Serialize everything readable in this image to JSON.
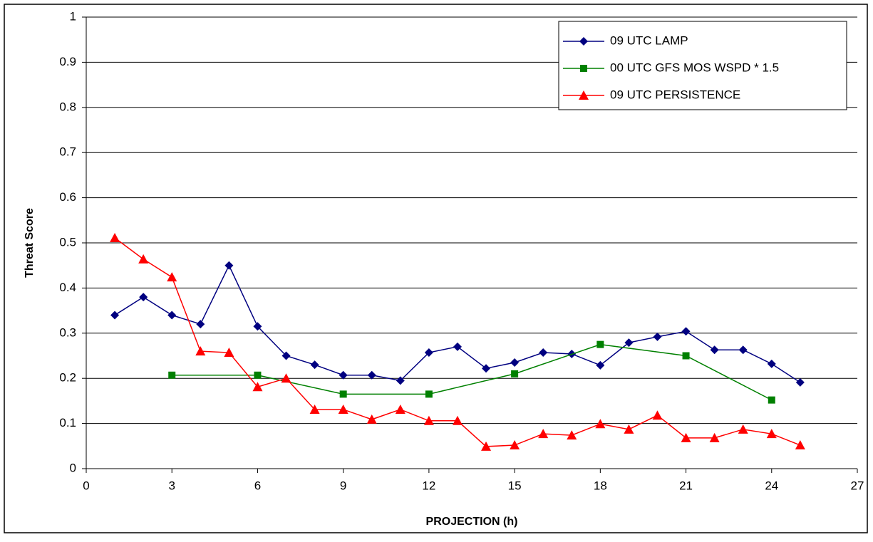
{
  "chart_data": {
    "type": "line",
    "xlabel": "PROJECTION (h)",
    "ylabel": "Threat Score",
    "xlim": [
      0,
      27
    ],
    "xticks": [
      0,
      3,
      6,
      9,
      12,
      15,
      18,
      21,
      24,
      27
    ],
    "ylim": [
      0,
      1
    ],
    "yticks": [
      0,
      0.1,
      0.2,
      0.3,
      0.4,
      0.5,
      0.6,
      0.7,
      0.8,
      0.9,
      1
    ],
    "grid": true,
    "legend": "upper right",
    "series": [
      {
        "name": "09 UTC LAMP",
        "color": "#000080",
        "marker": "diamond",
        "x": [
          1,
          2,
          3,
          4,
          5,
          6,
          7,
          8,
          9,
          10,
          11,
          12,
          13,
          14,
          15,
          16,
          17,
          18,
          19,
          20,
          21,
          22,
          23,
          24,
          25
        ],
        "values": [
          0.34,
          0.38,
          0.34,
          0.32,
          0.45,
          0.315,
          0.25,
          0.23,
          0.207,
          0.207,
          0.195,
          0.257,
          0.27,
          0.222,
          0.235,
          0.257,
          0.254,
          0.229,
          0.279,
          0.292,
          0.304,
          0.263,
          0.263,
          0.232,
          0.191
        ]
      },
      {
        "name": "00 UTC GFS MOS WSPD * 1.5",
        "color": "#008000",
        "marker": "square",
        "x": [
          3,
          6,
          9,
          12,
          15,
          18,
          21,
          24
        ],
        "values": [
          0.207,
          0.207,
          0.165,
          0.165,
          0.21,
          0.275,
          0.25,
          0.152
        ]
      },
      {
        "name": "09 UTC PERSISTENCE",
        "color": "#ff0000",
        "marker": "triangle",
        "x": [
          1,
          2,
          3,
          4,
          5,
          6,
          7,
          8,
          9,
          10,
          11,
          12,
          13,
          14,
          15,
          16,
          17,
          18,
          19,
          20,
          21,
          22,
          23,
          24,
          25
        ],
        "values": [
          0.511,
          0.464,
          0.424,
          0.26,
          0.257,
          0.181,
          0.2,
          0.131,
          0.131,
          0.109,
          0.131,
          0.106,
          0.106,
          0.049,
          0.052,
          0.077,
          0.074,
          0.099,
          0.087,
          0.118,
          0.068,
          0.068,
          0.087,
          0.077,
          0.052
        ]
      }
    ]
  }
}
